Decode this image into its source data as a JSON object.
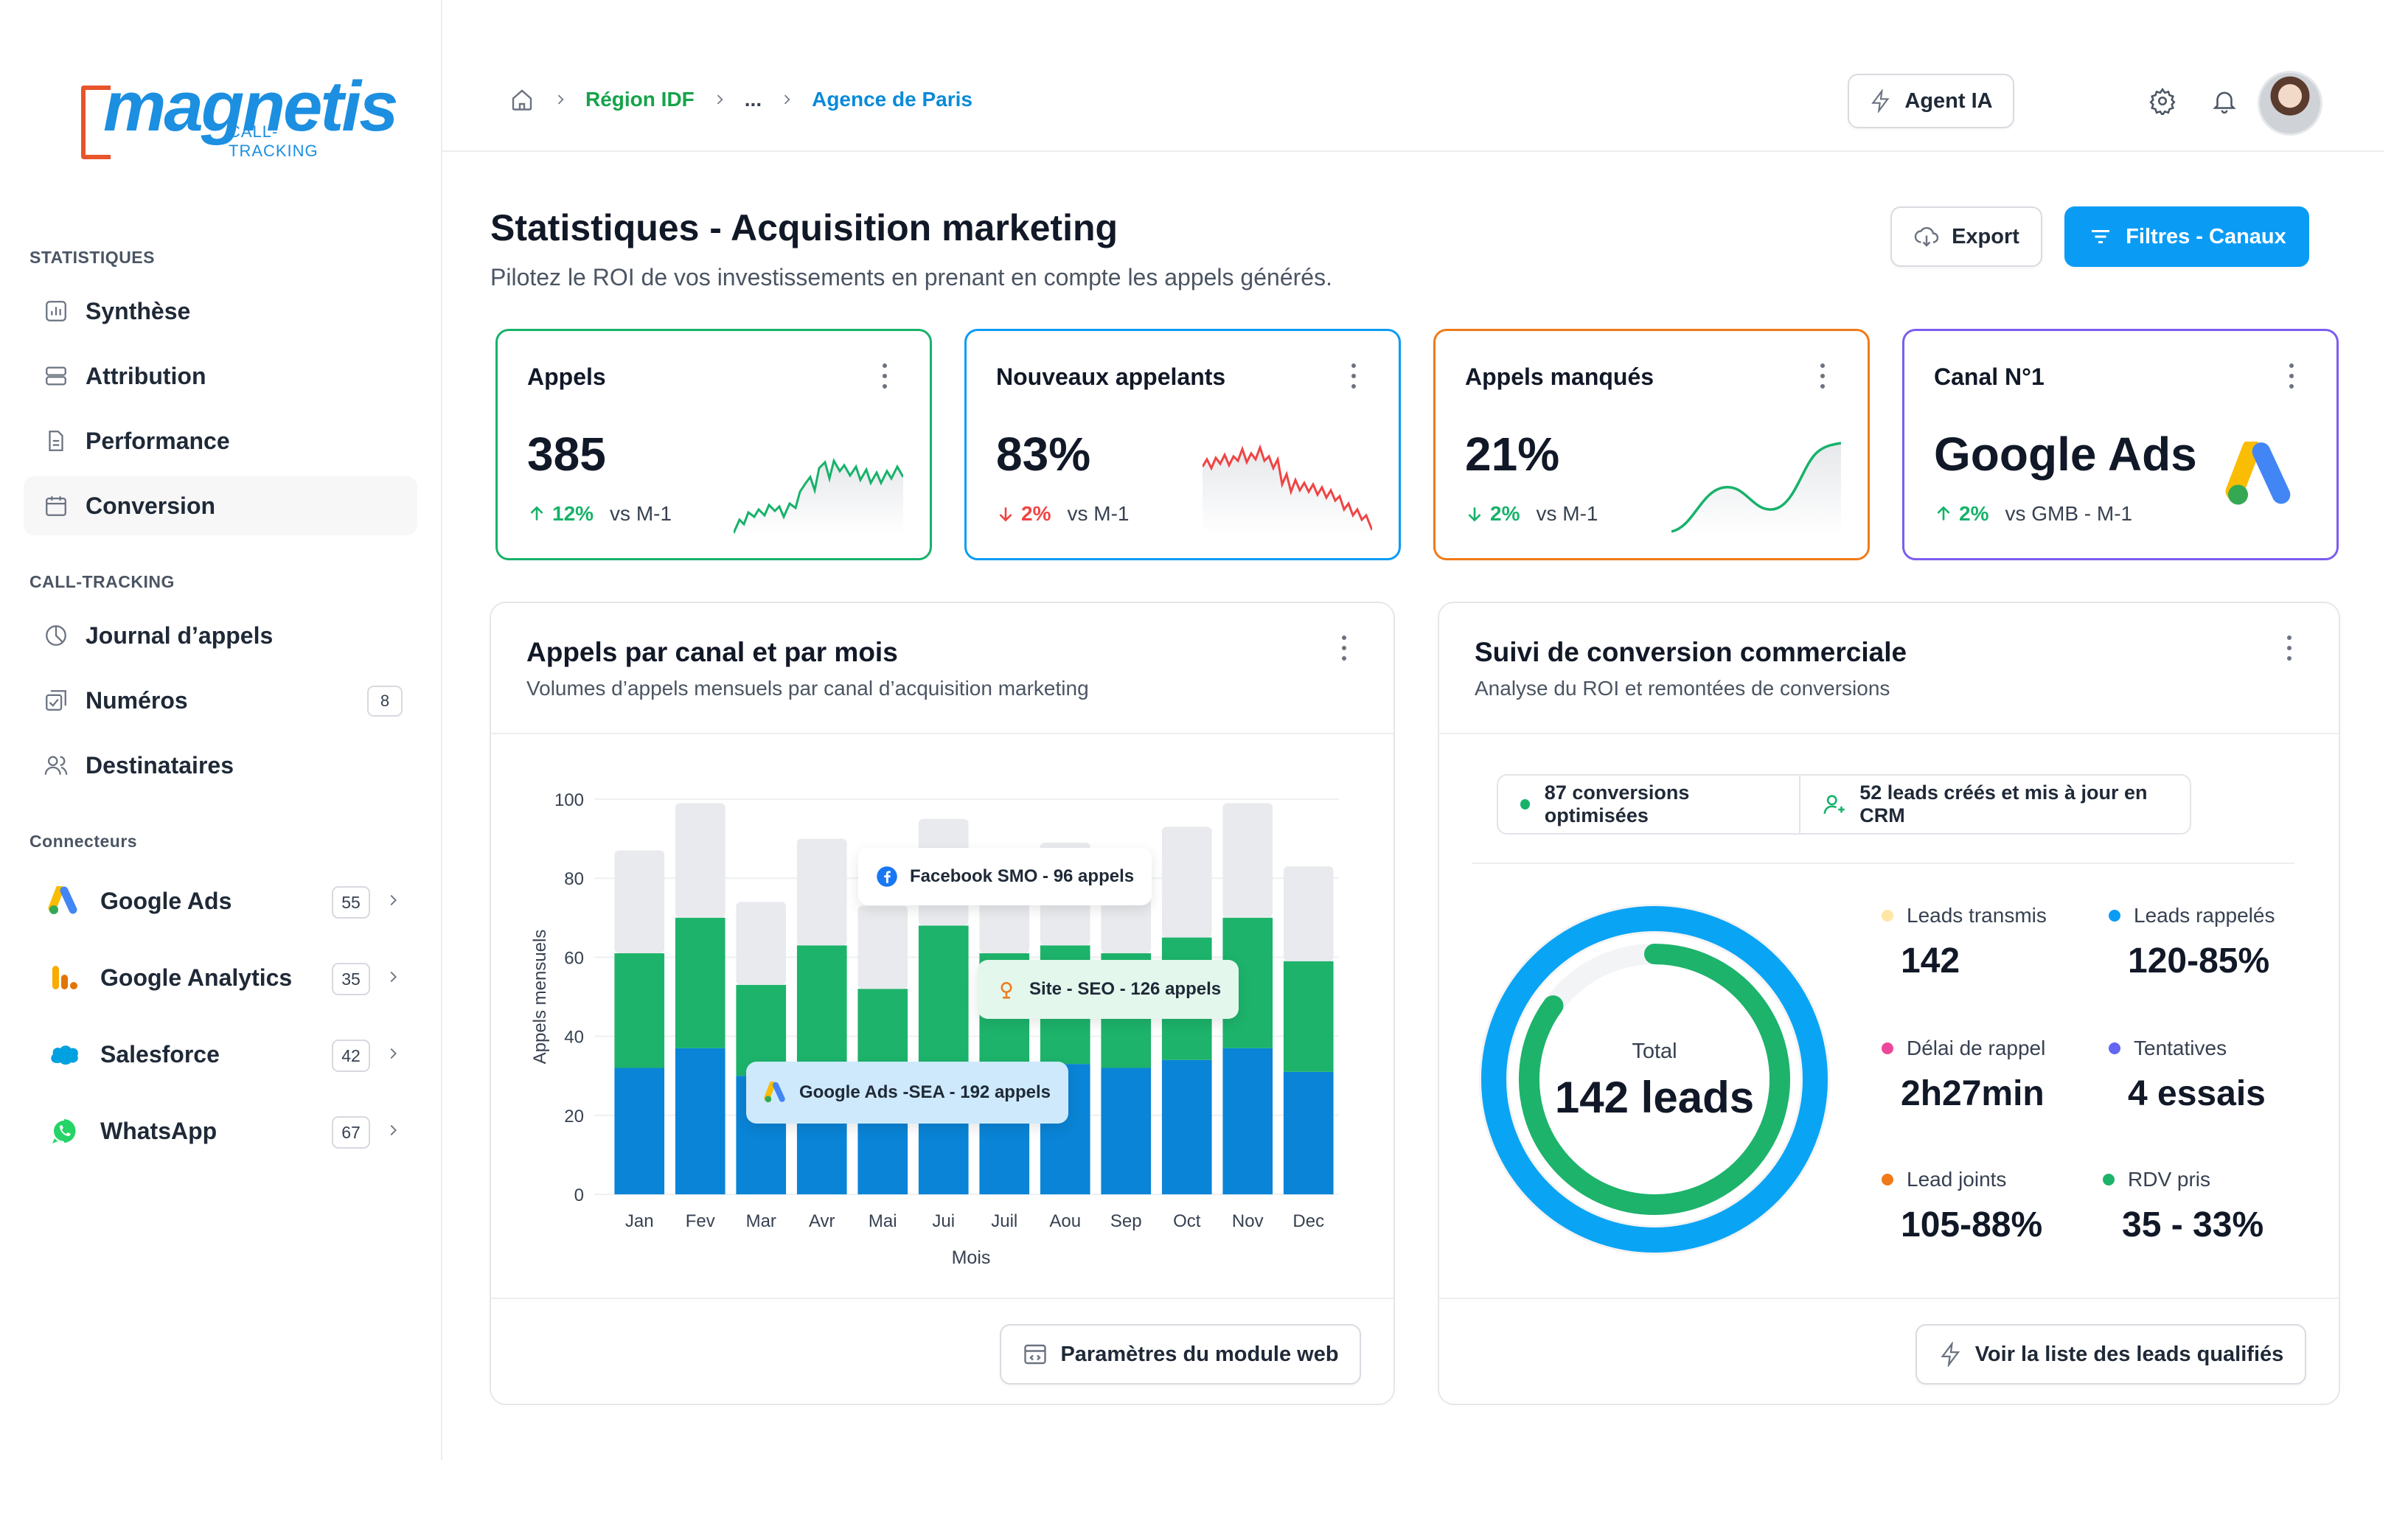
{
  "brand": {
    "name": "magnetis",
    "tagline": "CALL-TRACKING"
  },
  "sidebar": {
    "sections": {
      "stats": "STATISTIQUES",
      "calltracking": "CALL-TRACKING",
      "connectors": "Connecteurs"
    },
    "stats_items": [
      {
        "label": "Synthèse",
        "icon": "bar-chart-icon"
      },
      {
        "label": "Attribution",
        "icon": "stack-icon"
      },
      {
        "label": "Performance",
        "icon": "document-icon"
      },
      {
        "label": "Conversion",
        "icon": "calendar-icon",
        "active": true
      }
    ],
    "ct_items": [
      {
        "label": "Journal d’appels",
        "icon": "pie-icon"
      },
      {
        "label": "Numéros",
        "icon": "checklist-icon",
        "badge": "8"
      },
      {
        "label": "Destinataires",
        "icon": "users-icon"
      }
    ],
    "connectors": [
      {
        "label": "Google Ads",
        "count": "55",
        "icon": "google-ads-icon"
      },
      {
        "label": "Google Analytics",
        "count": "35",
        "icon": "google-analytics-icon"
      },
      {
        "label": "Salesforce",
        "count": "42",
        "icon": "salesforce-icon"
      },
      {
        "label": "WhatsApp",
        "count": "67",
        "icon": "whatsapp-icon"
      }
    ]
  },
  "topbar": {
    "breadcrumb": [
      "Région IDF",
      "...",
      "Agence de Paris"
    ],
    "agent_label": "Agent IA"
  },
  "page": {
    "title": "Statistiques - Acquisition marketing",
    "subtitle": "Pilotez le ROI de vos investissements en prenant en compte les appels générés.",
    "export_label": "Export",
    "filter_label": "Filtres - Canaux"
  },
  "kpis": [
    {
      "label": "Appels",
      "value": "385",
      "delta": "12%",
      "direction": "up",
      "compare": "vs M-1",
      "color": "#17b26a"
    },
    {
      "label": "Nouveaux appelants",
      "value": "83%",
      "delta": "2%",
      "direction": "down",
      "compare": "vs M-1",
      "color": "#0a9cf5"
    },
    {
      "label": "Appels manqués",
      "value": "21%",
      "delta": "2%",
      "direction": "down",
      "compare": "vs M-1",
      "color": "#f07a1a"
    },
    {
      "label": "Canal N°1",
      "value": "Google Ads",
      "delta": "2%",
      "direction": "up",
      "compare": "vs GMB - M-1",
      "color": "#7c5cf0"
    }
  ],
  "chart_panel": {
    "title": "Appels par canal et par mois",
    "subtitle": "Volumes d’appels mensuels par canal d’acquisition marketing",
    "footer_button": "Paramètres du module web"
  },
  "chart_data": {
    "type": "bar",
    "stacked": true,
    "categories": [
      "Jan",
      "Fev",
      "Mar",
      "Avr",
      "Mai",
      "Jui",
      "Juil",
      "Aou",
      "Sep",
      "Oct",
      "Nov",
      "Dec"
    ],
    "series": [
      {
        "name": "Google Ads -SEA",
        "color": "#0a84d6",
        "values": [
          32,
          37,
          30,
          33,
          30,
          33,
          31,
          33,
          32,
          34,
          37,
          31
        ]
      },
      {
        "name": "Site - SEO",
        "color": "#1db36b",
        "values": [
          29,
          33,
          23,
          30,
          22,
          35,
          30,
          30,
          29,
          31,
          33,
          28
        ]
      },
      {
        "name": "Facebook SMO",
        "color": "#e8eaed",
        "values": [
          26,
          29,
          21,
          27,
          21,
          27,
          24,
          26,
          23,
          28,
          29,
          24
        ]
      }
    ],
    "xlabel": "Mois",
    "ylabel": "Appels mensuels",
    "ylim": [
      0,
      100
    ],
    "yticks": [
      0,
      20,
      40,
      60,
      80,
      100
    ],
    "tooltips": [
      "Facebook SMO - 96 appels",
      "Site - SEO - 126 appels",
      "Google Ads -SEA - 192 appels"
    ]
  },
  "conversion_panel": {
    "title": "Suivi de conversion commerciale",
    "subtitle": "Analyse du ROI et remontées de conversions",
    "pill_conversions": "87 conversions optimisées",
    "pill_leads": "52 leads créés et mis à jour en CRM",
    "donut": {
      "label": "Total",
      "value": "142 leads",
      "outer_fraction": 1.0,
      "inner_fraction": 0.85
    },
    "stats": [
      {
        "label": "Leads transmis",
        "value": "142",
        "color": "#fde7a6"
      },
      {
        "label": "Leads rappelés",
        "value": "120-85%",
        "color": "#0a9cf5"
      },
      {
        "label": "Délai de rappel",
        "value": "2h27min",
        "color": "#ec4899"
      },
      {
        "label": "Tentatives",
        "value": "4 essais",
        "color": "#6366f1"
      },
      {
        "label": "Lead joints",
        "value": "105-88%",
        "color": "#f07a1a"
      },
      {
        "label": "RDV pris",
        "value": "35 - 33%",
        "color": "#1db36b"
      }
    ],
    "footer_button": "Voir la liste des leads qualifiés"
  }
}
